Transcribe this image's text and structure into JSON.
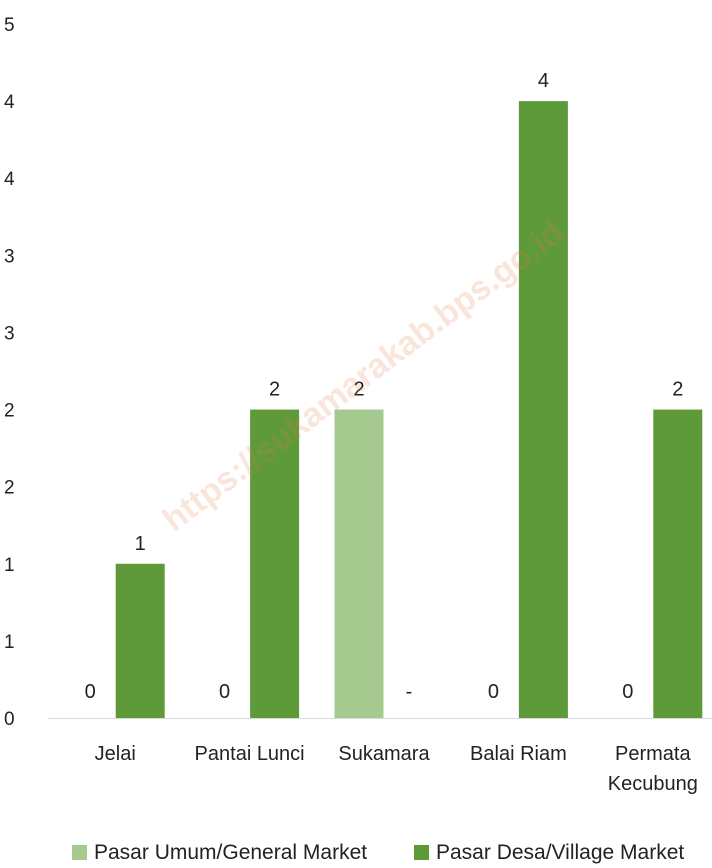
{
  "chart_data": {
    "type": "bar",
    "categories": [
      [
        "Jelai"
      ],
      [
        "Pantai Lunci"
      ],
      [
        "Sukamara"
      ],
      [
        "Balai Riam"
      ],
      [
        "Permata",
        "Kecubung"
      ]
    ],
    "series": [
      {
        "name": "Pasar Umum/General Market",
        "color": "#a5c98f",
        "values": [
          0,
          0,
          2,
          0,
          0
        ],
        "labels": [
          "0",
          "0",
          "2",
          "0",
          "0"
        ]
      },
      {
        "name": "Pasar Desa/Village Market",
        "color": "#5f9a3a",
        "values": [
          1,
          2,
          0,
          4,
          2
        ],
        "labels": [
          "1",
          "2",
          "-",
          "4",
          "2"
        ]
      }
    ],
    "ylim": [
      0,
      4.5
    ],
    "yticks": [
      {
        "value": 0,
        "label": "0"
      },
      {
        "value": 0.5,
        "label": "1"
      },
      {
        "value": 1,
        "label": "1"
      },
      {
        "value": 1.5,
        "label": "2"
      },
      {
        "value": 2,
        "label": "2"
      },
      {
        "value": 2.5,
        "label": "3"
      },
      {
        "value": 3,
        "label": "3"
      },
      {
        "value": 3.5,
        "label": "4"
      },
      {
        "value": 4,
        "label": "4"
      },
      {
        "value": 4.5,
        "label": "5"
      }
    ],
    "grid": false,
    "legend_position": "bottom"
  },
  "watermark": "https://sukamarakab.bps.go.id"
}
